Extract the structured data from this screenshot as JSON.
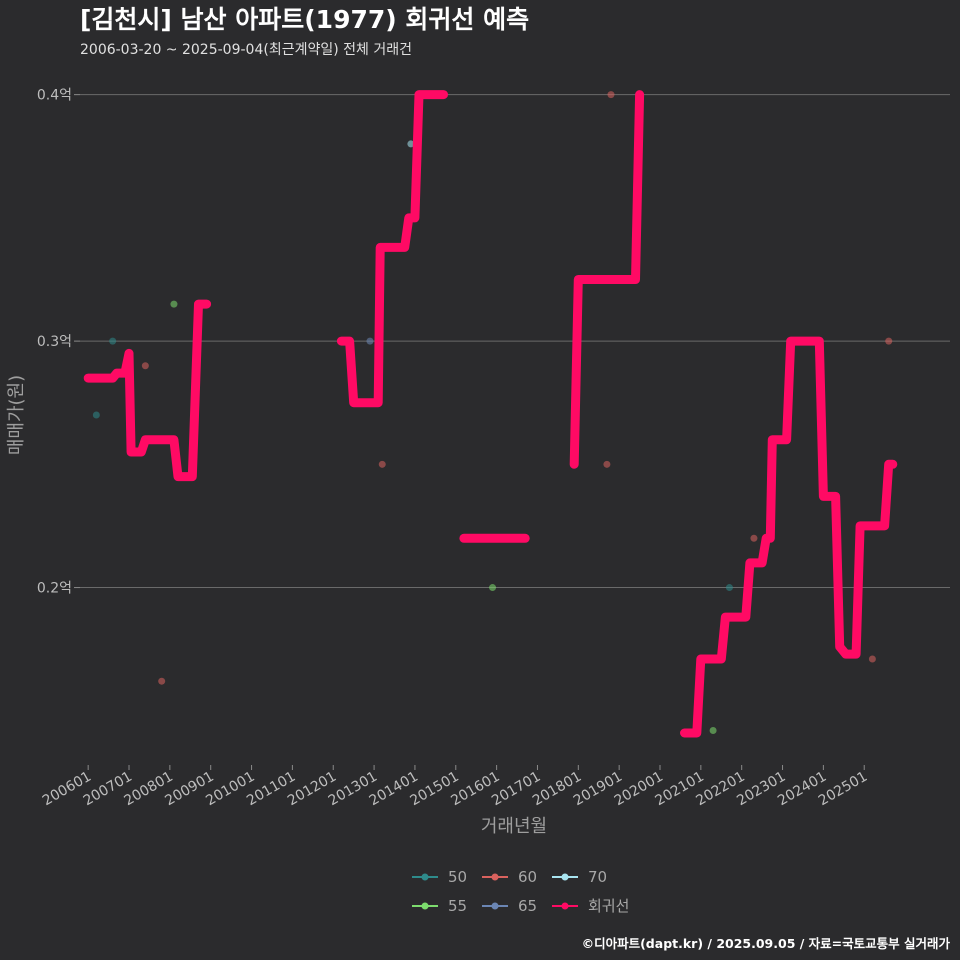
{
  "chart_data": {
    "type": "line",
    "title": "[김천시] 남산 아파트(1977) 회귀선 예측",
    "subtitle": "2006-03-20 ~ 2025-09-04(최근계약일) 전체 거래건",
    "xlabel": "거래년월",
    "ylabel": "매매가(원)",
    "caption": "©디아파트(dapt.kr) / 2025.09.05 / 자료=국토교통부 실거래가",
    "x_ticks": [
      "200601",
      "200701",
      "200801",
      "200901",
      "201001",
      "201101",
      "201201",
      "201301",
      "201401",
      "201501",
      "201601",
      "201701",
      "201801",
      "201901",
      "202001",
      "202101",
      "202201",
      "202301",
      "202401",
      "202501"
    ],
    "y_ticks": [
      {
        "value": 0.2,
        "label": "0.2억"
      },
      {
        "value": 0.3,
        "label": "0.3억"
      },
      {
        "value": 0.4,
        "label": "0.4억"
      }
    ],
    "xlim": [
      2005.8,
      2027.1
    ],
    "ylim": [
      0.128,
      0.41
    ],
    "grid": true,
    "legend_position": "bottom",
    "legend": [
      {
        "name": "50",
        "color": "#2e8b8b"
      },
      {
        "name": "55",
        "color": "#7ddc6e"
      },
      {
        "name": "60",
        "color": "#d9625e"
      },
      {
        "name": "65",
        "color": "#6b86b4"
      },
      {
        "name": "70",
        "color": "#a8e4f0"
      },
      {
        "name": "회귀선",
        "color": "#ff0a64"
      }
    ],
    "points": [
      {
        "x": 2006.2,
        "y": 0.27,
        "group": "50"
      },
      {
        "x": 2006.6,
        "y": 0.3,
        "group": "50"
      },
      {
        "x": 2007.4,
        "y": 0.29,
        "group": "60"
      },
      {
        "x": 2007.8,
        "y": 0.162,
        "group": "60"
      },
      {
        "x": 2008.1,
        "y": 0.315,
        "group": "55"
      },
      {
        "x": 2012.9,
        "y": 0.3,
        "group": "65"
      },
      {
        "x": 2013.2,
        "y": 0.25,
        "group": "60"
      },
      {
        "x": 2013.9,
        "y": 0.38,
        "group": "70"
      },
      {
        "x": 2015.9,
        "y": 0.2,
        "group": "55"
      },
      {
        "x": 2018.7,
        "y": 0.25,
        "group": "60"
      },
      {
        "x": 2018.8,
        "y": 0.4,
        "group": "60"
      },
      {
        "x": 2021.3,
        "y": 0.142,
        "group": "55"
      },
      {
        "x": 2021.7,
        "y": 0.2,
        "group": "50"
      },
      {
        "x": 2022.3,
        "y": 0.22,
        "group": "60"
      },
      {
        "x": 2025.2,
        "y": 0.171,
        "group": "60"
      },
      {
        "x": 2025.6,
        "y": 0.3,
        "group": "60"
      }
    ],
    "regression_segments": [
      [
        [
          2006.0,
          0.285
        ],
        [
          2006.6,
          0.285
        ],
        [
          2006.7,
          0.287
        ],
        [
          2006.9,
          0.287
        ],
        [
          2007.0,
          0.295
        ],
        [
          2007.05,
          0.255
        ],
        [
          2007.3,
          0.255
        ],
        [
          2007.4,
          0.26
        ],
        [
          2008.1,
          0.26
        ],
        [
          2008.2,
          0.245
        ],
        [
          2008.55,
          0.245
        ],
        [
          2008.7,
          0.315
        ],
        [
          2008.9,
          0.315
        ]
      ],
      [
        [
          2012.2,
          0.3
        ],
        [
          2012.4,
          0.3
        ],
        [
          2012.5,
          0.275
        ],
        [
          2013.1,
          0.275
        ],
        [
          2013.15,
          0.338
        ],
        [
          2013.75,
          0.338
        ],
        [
          2013.85,
          0.35
        ],
        [
          2014.0,
          0.35
        ],
        [
          2014.1,
          0.4
        ],
        [
          2014.7,
          0.4
        ]
      ],
      [
        [
          2015.2,
          0.22
        ],
        [
          2016.7,
          0.22
        ]
      ],
      [
        [
          2017.9,
          0.25
        ],
        [
          2018.0,
          0.325
        ],
        [
          2019.4,
          0.325
        ],
        [
          2019.5,
          0.4
        ]
      ],
      [
        [
          2020.6,
          0.141
        ],
        [
          2020.9,
          0.141
        ],
        [
          2021.0,
          0.171
        ],
        [
          2021.5,
          0.171
        ],
        [
          2021.6,
          0.188
        ],
        [
          2022.1,
          0.188
        ],
        [
          2022.2,
          0.21
        ],
        [
          2022.5,
          0.21
        ],
        [
          2022.6,
          0.22
        ],
        [
          2022.7,
          0.22
        ],
        [
          2022.75,
          0.26
        ],
        [
          2023.1,
          0.26
        ],
        [
          2023.2,
          0.3
        ],
        [
          2023.9,
          0.3
        ],
        [
          2024.0,
          0.237
        ],
        [
          2024.3,
          0.237
        ],
        [
          2024.4,
          0.176
        ],
        [
          2024.55,
          0.173
        ],
        [
          2024.8,
          0.173
        ],
        [
          2024.9,
          0.225
        ],
        [
          2025.5,
          0.225
        ],
        [
          2025.6,
          0.25
        ],
        [
          2025.7,
          0.25
        ]
      ]
    ]
  }
}
